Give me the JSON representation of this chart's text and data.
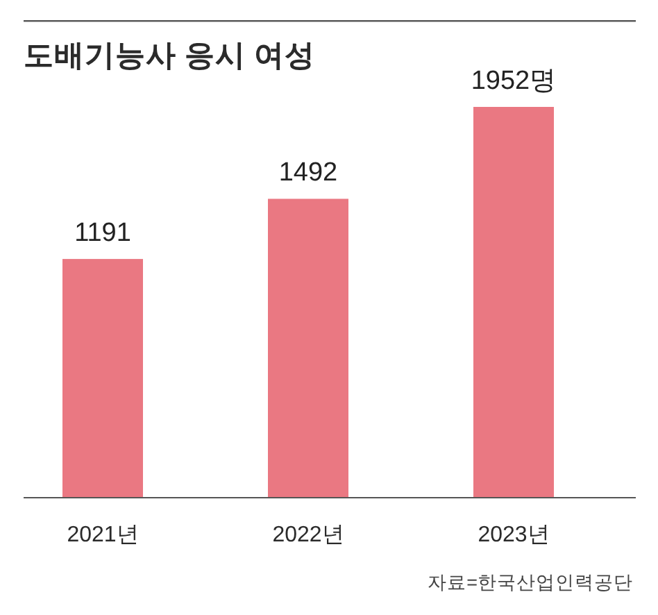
{
  "chart_data": {
    "type": "bar",
    "title": "도배기능사 응시 여성",
    "categories": [
      "2021년",
      "2022년",
      "2023년"
    ],
    "values": [
      1191,
      1492,
      1952
    ],
    "value_labels": [
      "1191",
      "1492",
      "1952명"
    ],
    "color": "#ea7882",
    "annotations": [
      "자료=한국산업인력공단"
    ]
  }
}
